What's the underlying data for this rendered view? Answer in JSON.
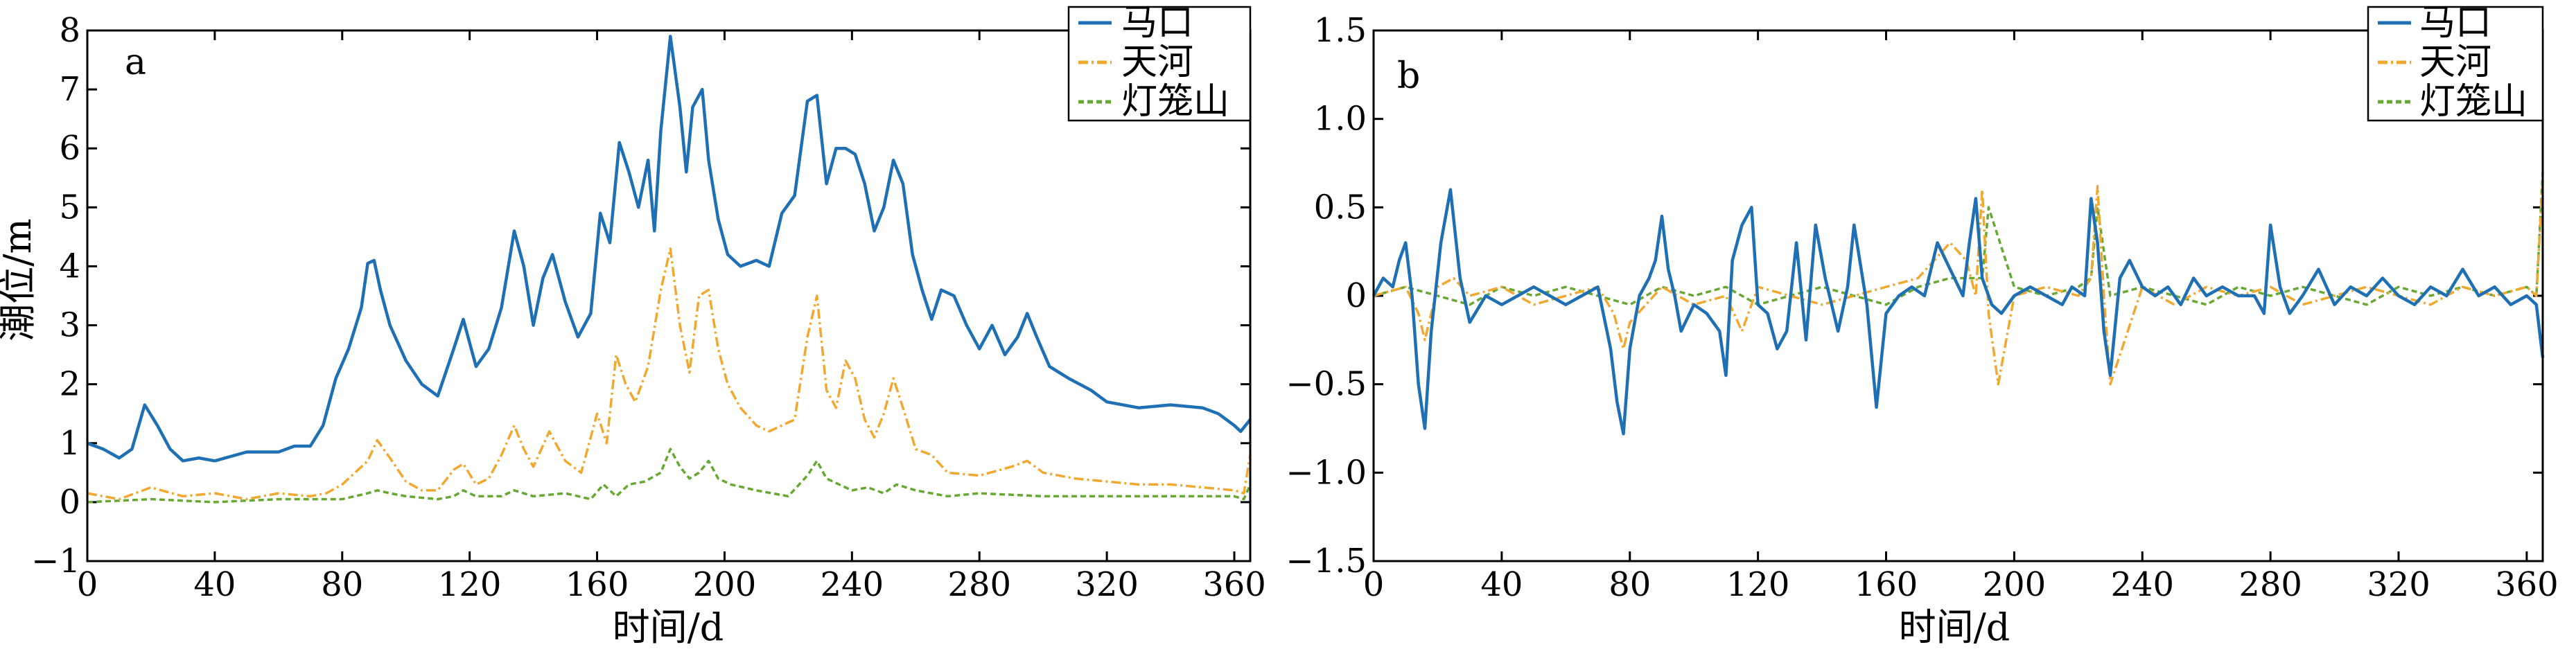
{
  "colors": {
    "mako": "#1f6fb5",
    "tianhe": "#f0a830",
    "denglongshan": "#66a832"
  },
  "chart_data": [
    {
      "type": "line",
      "panel_label": "a",
      "xlabel": "时间/d",
      "ylabel": "潮位/m",
      "xlim": [
        0,
        365
      ],
      "ylim": [
        -1,
        8
      ],
      "x_ticks": [
        0,
        40,
        80,
        120,
        160,
        200,
        240,
        280,
        320,
        360
      ],
      "y_ticks": [
        -1,
        0,
        1,
        2,
        3,
        4,
        5,
        6,
        7,
        8
      ],
      "legend": {
        "placement": "top-right",
        "entries": [
          "马口",
          "天河",
          "灯笼山"
        ]
      },
      "series": [
        {
          "name": "马口",
          "style": "solid",
          "x": [
            0,
            5,
            10,
            14,
            18,
            22,
            26,
            30,
            35,
            40,
            50,
            60,
            65,
            70,
            74,
            78,
            82,
            86,
            88,
            90,
            92,
            95,
            100,
            105,
            110,
            115,
            118,
            122,
            126,
            130,
            134,
            137,
            140,
            143,
            146,
            150,
            154,
            158,
            161,
            164,
            167,
            170,
            173,
            176,
            178,
            180,
            183,
            186,
            188,
            190,
            193,
            195,
            198,
            201,
            205,
            210,
            214,
            218,
            222,
            226,
            229,
            232,
            235,
            238,
            241,
            244,
            247,
            250,
            253,
            256,
            259,
            262,
            265,
            268,
            272,
            276,
            280,
            284,
            288,
            292,
            295,
            298,
            302,
            308,
            315,
            320,
            330,
            340,
            350,
            355,
            360,
            362,
            365
          ],
          "values": [
            1.0,
            0.9,
            0.75,
            0.9,
            1.65,
            1.3,
            0.9,
            0.7,
            0.75,
            0.7,
            0.85,
            0.85,
            0.95,
            0.95,
            1.3,
            2.1,
            2.6,
            3.3,
            4.05,
            4.1,
            3.6,
            3.0,
            2.4,
            2.0,
            1.8,
            2.6,
            3.1,
            2.3,
            2.6,
            3.3,
            4.6,
            4.0,
            3.0,
            3.8,
            4.2,
            3.4,
            2.8,
            3.2,
            4.9,
            4.4,
            6.1,
            5.6,
            5.0,
            5.8,
            4.6,
            6.3,
            7.9,
            6.7,
            5.6,
            6.7,
            7.0,
            5.8,
            4.8,
            4.2,
            4.0,
            4.1,
            4.0,
            4.9,
            5.2,
            6.8,
            6.9,
            5.4,
            6.0,
            6.0,
            5.9,
            5.4,
            4.6,
            5.0,
            5.8,
            5.4,
            4.2,
            3.6,
            3.1,
            3.6,
            3.5,
            3.0,
            2.6,
            3.0,
            2.5,
            2.8,
            3.2,
            2.8,
            2.3,
            2.1,
            1.9,
            1.7,
            1.6,
            1.65,
            1.6,
            1.5,
            1.3,
            1.2,
            1.4
          ]
        },
        {
          "name": "天河",
          "style": "dash-dot",
          "x": [
            0,
            10,
            20,
            30,
            40,
            50,
            60,
            70,
            75,
            80,
            85,
            88,
            91,
            95,
            100,
            105,
            110,
            115,
            118,
            122,
            126,
            130,
            134,
            137,
            140,
            145,
            150,
            155,
            160,
            163,
            166,
            169,
            172,
            176,
            180,
            183,
            186,
            189,
            192,
            195,
            198,
            201,
            205,
            210,
            214,
            218,
            222,
            226,
            229,
            232,
            235,
            238,
            241,
            244,
            247,
            250,
            253,
            256,
            260,
            265,
            270,
            280,
            290,
            295,
            300,
            310,
            320,
            330,
            340,
            350,
            360,
            363,
            365
          ],
          "values": [
            0.15,
            0.05,
            0.25,
            0.1,
            0.15,
            0.05,
            0.15,
            0.1,
            0.15,
            0.3,
            0.55,
            0.7,
            1.05,
            0.75,
            0.35,
            0.2,
            0.2,
            0.55,
            0.65,
            0.3,
            0.4,
            0.8,
            1.3,
            0.9,
            0.6,
            1.2,
            0.7,
            0.5,
            1.5,
            1.0,
            2.5,
            2.0,
            1.7,
            2.3,
            3.6,
            4.3,
            3.0,
            2.2,
            3.5,
            3.6,
            2.6,
            2.0,
            1.6,
            1.3,
            1.2,
            1.3,
            1.4,
            2.8,
            3.5,
            1.9,
            1.6,
            2.4,
            2.1,
            1.4,
            1.1,
            1.5,
            2.1,
            1.6,
            0.9,
            0.8,
            0.5,
            0.45,
            0.6,
            0.7,
            0.5,
            0.4,
            0.35,
            0.3,
            0.3,
            0.25,
            0.2,
            0.15,
            0.8
          ]
        },
        {
          "name": "灯笼山",
          "style": "dashed",
          "x": [
            0,
            20,
            40,
            60,
            80,
            88,
            91,
            95,
            100,
            110,
            115,
            118,
            122,
            130,
            134,
            140,
            150,
            158,
            162,
            166,
            170,
            175,
            180,
            183,
            186,
            189,
            192,
            195,
            198,
            202,
            210,
            220,
            226,
            229,
            232,
            236,
            240,
            245,
            250,
            254,
            260,
            270,
            280,
            300,
            320,
            340,
            360,
            363,
            365
          ],
          "values": [
            0.0,
            0.05,
            0.0,
            0.05,
            0.05,
            0.15,
            0.2,
            0.15,
            0.1,
            0.05,
            0.1,
            0.2,
            0.1,
            0.1,
            0.2,
            0.1,
            0.15,
            0.05,
            0.3,
            0.1,
            0.3,
            0.35,
            0.5,
            0.9,
            0.6,
            0.4,
            0.5,
            0.7,
            0.4,
            0.3,
            0.2,
            0.1,
            0.45,
            0.7,
            0.4,
            0.3,
            0.2,
            0.25,
            0.15,
            0.3,
            0.2,
            0.1,
            0.15,
            0.1,
            0.1,
            0.1,
            0.1,
            0.05,
            0.3
          ]
        }
      ]
    },
    {
      "type": "line",
      "panel_label": "b",
      "xlabel": "时间/d",
      "ylabel": "",
      "xlim": [
        0,
        365
      ],
      "ylim": [
        -1.5,
        1.5
      ],
      "x_ticks": [
        0,
        40,
        80,
        120,
        160,
        200,
        240,
        280,
        320,
        360
      ],
      "y_ticks": [
        -1.5,
        -1.0,
        -0.5,
        0,
        0.5,
        1.0,
        1.5
      ],
      "y_tick_labels": [
        "−1.5",
        "−1.0",
        "−0.5",
        "0",
        "0.5",
        "1.0",
        "1.5"
      ],
      "legend": {
        "placement": "top-right",
        "entries": [
          "马口",
          "天河",
          "灯笼山"
        ]
      },
      "series": [
        {
          "name": "马口",
          "style": "solid",
          "x": [
            0,
            3,
            6,
            8,
            10,
            12,
            14,
            16,
            18,
            21,
            24,
            27,
            30,
            35,
            40,
            45,
            50,
            55,
            60,
            65,
            70,
            74,
            76,
            78,
            80,
            83,
            86,
            88,
            90,
            92,
            94,
            96,
            100,
            104,
            108,
            110,
            112,
            115,
            118,
            120,
            123,
            126,
            129,
            132,
            135,
            138,
            141,
            145,
            148,
            150,
            154,
            157,
            160,
            164,
            168,
            172,
            176,
            180,
            184,
            186,
            188,
            190,
            193,
            196,
            200,
            205,
            210,
            215,
            218,
            222,
            224,
            226,
            228,
            230,
            233,
            236,
            240,
            244,
            248,
            252,
            256,
            260,
            265,
            270,
            275,
            278,
            280,
            283,
            286,
            290,
            295,
            300,
            305,
            310,
            315,
            320,
            325,
            330,
            335,
            340,
            345,
            350,
            355,
            360,
            363,
            365
          ],
          "values": [
            0.0,
            0.1,
            0.05,
            0.2,
            0.3,
            0.0,
            -0.5,
            -0.75,
            -0.2,
            0.3,
            0.6,
            0.1,
            -0.15,
            0.0,
            -0.05,
            0.0,
            0.05,
            0.0,
            -0.05,
            0.0,
            0.05,
            -0.3,
            -0.6,
            -0.78,
            -0.3,
            0.0,
            0.1,
            0.2,
            0.45,
            0.15,
            0.0,
            -0.2,
            -0.05,
            -0.1,
            -0.2,
            -0.45,
            0.2,
            0.4,
            0.5,
            -0.05,
            -0.1,
            -0.3,
            -0.2,
            0.3,
            -0.25,
            0.4,
            0.1,
            -0.2,
            0.05,
            0.4,
            -0.05,
            -0.63,
            -0.1,
            0.0,
            0.05,
            0.0,
            0.3,
            0.15,
            0.0,
            0.3,
            0.55,
            0.1,
            -0.05,
            -0.1,
            0.0,
            0.05,
            0.0,
            -0.05,
            0.05,
            0.0,
            0.55,
            0.3,
            -0.2,
            -0.45,
            0.1,
            0.2,
            0.05,
            0.0,
            0.05,
            -0.05,
            0.1,
            0.0,
            0.05,
            0.0,
            0.0,
            -0.1,
            0.4,
            0.05,
            -0.1,
            0.0,
            0.15,
            -0.05,
            0.05,
            0.0,
            0.1,
            0.0,
            -0.05,
            0.05,
            0.0,
            0.15,
            0.0,
            0.05,
            -0.05,
            0.0,
            -0.05,
            -0.35
          ]
        },
        {
          "name": "天河",
          "style": "dash-dot",
          "x": [
            0,
            10,
            14,
            16,
            20,
            25,
            30,
            40,
            50,
            60,
            70,
            75,
            78,
            80,
            85,
            90,
            100,
            110,
            115,
            120,
            130,
            140,
            150,
            160,
            170,
            175,
            180,
            185,
            188,
            190,
            192,
            195,
            200,
            210,
            220,
            224,
            226,
            228,
            230,
            240,
            250,
            260,
            270,
            280,
            290,
            300,
            310,
            320,
            330,
            340,
            350,
            360,
            363,
            365
          ],
          "values": [
            0.0,
            0.05,
            -0.1,
            -0.25,
            0.05,
            0.1,
            0.0,
            0.05,
            -0.05,
            0.0,
            0.05,
            -0.1,
            -0.3,
            -0.15,
            -0.05,
            0.05,
            -0.05,
            0.0,
            -0.2,
            0.05,
            0.0,
            -0.05,
            0.0,
            0.05,
            0.1,
            0.2,
            0.3,
            0.2,
            0.0,
            0.6,
            -0.1,
            -0.5,
            0.0,
            0.05,
            0.0,
            0.1,
            0.62,
            0.0,
            -0.5,
            0.05,
            -0.05,
            0.05,
            0.0,
            0.05,
            -0.05,
            0.0,
            0.05,
            0.0,
            -0.05,
            0.05,
            0.0,
            0.05,
            0.0,
            0.65
          ]
        },
        {
          "name": "灯笼山",
          "style": "dashed",
          "x": [
            0,
            10,
            20,
            30,
            40,
            50,
            60,
            70,
            80,
            90,
            100,
            110,
            120,
            130,
            140,
            150,
            160,
            170,
            180,
            190,
            192,
            200,
            210,
            220,
            224,
            226,
            230,
            240,
            250,
            260,
            270,
            280,
            290,
            300,
            310,
            320,
            330,
            340,
            350,
            360,
            363,
            365
          ],
          "values": [
            0.0,
            0.05,
            0.0,
            -0.05,
            0.05,
            0.0,
            0.05,
            0.0,
            -0.05,
            0.05,
            0.0,
            0.05,
            -0.05,
            0.0,
            0.05,
            0.0,
            -0.05,
            0.05,
            0.1,
            0.1,
            0.5,
            0.05,
            0.0,
            0.05,
            0.1,
            0.5,
            0.0,
            0.05,
            0.0,
            -0.05,
            0.05,
            0.0,
            0.05,
            0.0,
            -0.05,
            0.05,
            0.0,
            0.05,
            0.0,
            0.05,
            0.0,
            0.7
          ]
        }
      ]
    }
  ]
}
